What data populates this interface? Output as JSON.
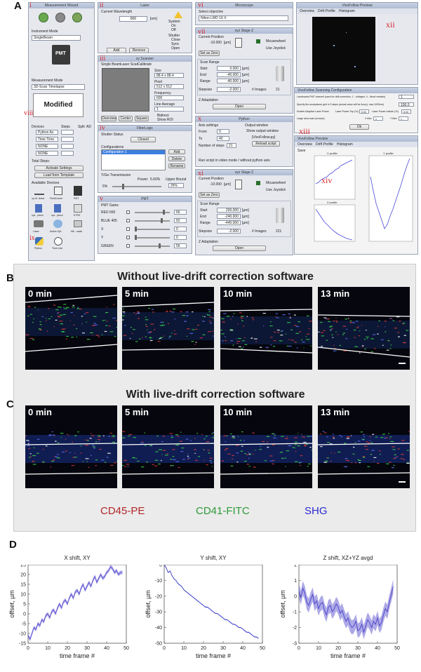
{
  "panels": {
    "a": "A",
    "b": "B",
    "c": "C",
    "d": "D"
  },
  "ui": {
    "roman": {
      "i": "i",
      "ii": "ii",
      "iii": "iii",
      "iv": "iv",
      "v": "v",
      "vi": "vi",
      "vii": "vii",
      "viii": "viii",
      "ix": "ix",
      "x": "x",
      "xi": "xi",
      "xii": "xii",
      "xiii": "xiii",
      "xiv": "xiv"
    },
    "measurement_wizard": {
      "title": "Measurement Wizard",
      "instrument_mode_label": "Instrument Mode",
      "instrument_mode_value": "SingleBeam",
      "measurement_mode_label": "Measurement Mode",
      "measurement_mode_value": "3D-Scan Timelapse",
      "modified": "Modified",
      "devices_label": "Devices",
      "steps_label": "Steps",
      "split_label": "Split",
      "ad_label": "AD",
      "devices": [
        "Python Ax",
        "Time Time",
        "NONE",
        "NONE"
      ],
      "total_steps": "Total Steps:",
      "activate_settings": "Activate Settings",
      "load_from_template": "Load from Template",
      "available_devices": "Available Devices",
      "device_icons": [
        "xy ctl. linear",
        "FieldCorner",
        "PMT",
        "xyz - piezo",
        "xyz - piezo",
        "ETRS",
        "Laser",
        "Active Opt.",
        "Mb - scale",
        "Python",
        "Time Line"
      ]
    },
    "laser": {
      "title": "Laser",
      "wavelength_label": "Current Wavelength",
      "wavelength_value": "800",
      "wavelength_unit": "[nm]",
      "system_label": "System",
      "system_on": "On",
      "system_off": "Off",
      "shutter_label": "Shutter",
      "shutter_close": "Close",
      "shutter_sync": "Sync",
      "shutter_open": "Open",
      "add": "Add",
      "remove": "Remove"
    },
    "scanner": {
      "title": "xy Scanner",
      "tabs": [
        "Single Beam",
        "Laser Scan",
        "Calibrate"
      ],
      "size_label": "Size",
      "size_value": "88.4 x 88.4",
      "pixel_label": "Pixel",
      "pixel_value": "512 x 512",
      "frequency_label": "Frequency",
      "frequency_value": "600",
      "line_average_label": "Line Average",
      "line_average_value": "1",
      "bidirect": "Bidirect",
      "show_roi": "Show ROI",
      "overview": "Overview",
      "center": "Center",
      "square": "Square"
    },
    "filterings": {
      "title": "FilterLogic",
      "shutter_status": "Shutter Status",
      "closed": "Closed",
      "configurations": "Configurations",
      "configuration_1": "Configuration 1",
      "add": "Add",
      "delete": "Delete",
      "rename": "Rename",
      "tv_transmission": "T/Ge-Transmission",
      "power_label": "Power:",
      "power_value": "5.60%",
      "upper_bound": "Upper Bound",
      "slider_min": "5%",
      "upper_bound_value": "25%"
    },
    "pmt": {
      "title": "PMT",
      "gains_label": "PMT Gains",
      "channels": [
        {
          "name": "RED 650",
          "value": "66"
        },
        {
          "name": "BLUE 405",
          "value": "62"
        },
        {
          "name": "X",
          "value": "0"
        },
        {
          "name": "Y",
          "value": "0"
        },
        {
          "name": "GREEN",
          "value": "56"
        }
      ]
    },
    "microscope": {
      "title": "Microscope",
      "select_objective": "Select objective",
      "objective_value": "Nikon LWD 16 X"
    },
    "z_stage_top": {
      "title": "xyz Stage Z",
      "current_position": "Current Position",
      "position_value": "-10.000",
      "unit": "[µm]",
      "mousewheel": "Mousewheel",
      "use_joystick": "Use Joystick",
      "set_as_zero": "Set as Zero",
      "scan_range": "Scan Range",
      "start_label": "Start",
      "start_value": "0.000",
      "end_label": "End",
      "end_value": "-40.000",
      "range_label": "Range",
      "range_value": "-40.000",
      "stepsize_label": "Stepsize",
      "stepsize_value": "-2.000",
      "images_label": "# Images",
      "images_value": "21",
      "z_adaptation": "Z Adaptation",
      "open": "Open"
    },
    "python": {
      "title": "Python",
      "axis_settings": "Axis settings",
      "from_label": "From",
      "from_value": "0",
      "to_label": "To",
      "to_value": "40",
      "number_of_steps": "Number of steps",
      "steps_value": "21",
      "output_window": "Output window",
      "show_output_window": "Show output window",
      "script_name": "[VivoFollow.py]",
      "reload_script": "Reload script",
      "run_video_mode": "Run script in video mode / without python axis"
    },
    "z_stage_bottom": {
      "title": "xyz Stage Z",
      "current_position": "Current Position",
      "position_value": "-10.000",
      "unit": "[µm]",
      "mousewheel": "Mousewheel",
      "use_joystick": "Use Joystick",
      "set_as_zero": "Set as Zero",
      "scan_range": "Scan Range",
      "start_label": "Start",
      "start_value": "200.000",
      "end_label": "End",
      "end_value": "-240.000",
      "range_label": "Range",
      "range_value": "-440.000",
      "stepsize_label": "Stepsize",
      "stepsize_value": "-2.000",
      "images_label": "# Images",
      "images_value": "221",
      "z_adaptation": "Z Adaptation",
      "open": "Open"
    },
    "overview": {
      "title": "VivoFollow Preview",
      "tabs": [
        "Overview",
        "Drift Profile",
        "Histogram"
      ]
    },
    "config_dialog": {
      "title": "VivoFollow Scanning Configuration",
      "landmark_label": "Landmarks PMT channel (used for drift correction, 1 - collagen, 4 - blood vessels)",
      "landmark_value": "1",
      "threshold_label": "Specify the acceptance grid in 3 steps (actual value will be fuzzy), max 1000nm)",
      "threshold_value": "100.0",
      "enable_adaptive": "Enable Adaptive Laser Power",
      "laser_power_top": "Laser Power Top (%)",
      "laser_power_top_value": "5.00",
      "laser_power_bottom": "Laser Power bottom (%)",
      "laser_power_bottom_value": "5.00",
      "large_area": "Large area scan (mosaic)",
      "x_tiles": "X tiles",
      "x_tiles_value": "1",
      "y_tiles": "Y tiles",
      "y_tiles_value": "1",
      "ok": "Ok"
    },
    "drift_window": {
      "title": "VivoFollow Preview",
      "tabs": [
        "Overview",
        "Drift Profile",
        "Histogram"
      ],
      "save_label": "Save",
      "plot_titles": [
        "X profile",
        "Y profile",
        "Z profile"
      ]
    }
  },
  "bc": {
    "title_b": "Without live-drift correction software",
    "title_c": "With live-drift correction software",
    "times": [
      "0 min",
      "5 min",
      "10 min",
      "13 min"
    ],
    "legend": [
      {
        "label": "CD45-PE",
        "color": "#b2262a"
      },
      {
        "label": "CD41-FITC",
        "color": "#2c9a3a"
      },
      {
        "label": "SHG",
        "color": "#2a2ad0"
      }
    ]
  },
  "chart_data": [
    {
      "type": "line",
      "title": "X shift, XY",
      "xlabel": "time frame #",
      "ylabel": "offset, µm",
      "xlim": [
        0,
        50
      ],
      "ylim": [
        -15,
        25
      ],
      "xticks": [
        0,
        10,
        20,
        30,
        40,
        50
      ],
      "yticks": [
        -15,
        -10,
        -5,
        0,
        5,
        10,
        15,
        20,
        25
      ],
      "color": "#5a4fd0",
      "band": 1.0,
      "series": [
        {
          "x": [
            0,
            1,
            2,
            3,
            4,
            5,
            6,
            7,
            8,
            9,
            10,
            11,
            12,
            13,
            14,
            15,
            16,
            17,
            18,
            19,
            20,
            21,
            22,
            23,
            24,
            25,
            26,
            27,
            28,
            29,
            30,
            31,
            32,
            33,
            34,
            35,
            36,
            37,
            38,
            39,
            40,
            41,
            42,
            43,
            44,
            45,
            46,
            47,
            48
          ],
          "values": [
            -11,
            -13,
            -10,
            -7,
            -8,
            -5,
            -6,
            -3,
            -4,
            -1,
            0,
            -2,
            1,
            2,
            0,
            3,
            5,
            3,
            6,
            7,
            5,
            8,
            10,
            8,
            11,
            12,
            10,
            13,
            15,
            12,
            14,
            16,
            14,
            17,
            19,
            16,
            18,
            20,
            18,
            19,
            21,
            22,
            24,
            23,
            21,
            22,
            20,
            21,
            21
          ]
        }
      ]
    },
    {
      "type": "line",
      "title": "Y shift, XY",
      "xlabel": "time frame #",
      "ylabel": "offset, µm",
      "xlim": [
        0,
        50
      ],
      "ylim": [
        -50,
        0
      ],
      "xticks": [
        0,
        10,
        20,
        30,
        40,
        50
      ],
      "yticks": [
        -50,
        -40,
        -30,
        -20,
        -10,
        0
      ],
      "color": "#3a3ac8",
      "band": 0.3,
      "series": [
        {
          "x": [
            0,
            1,
            2,
            3,
            4,
            5,
            6,
            7,
            8,
            9,
            10,
            11,
            12,
            13,
            14,
            15,
            16,
            17,
            18,
            19,
            20,
            21,
            22,
            23,
            24,
            25,
            26,
            27,
            28,
            29,
            30,
            31,
            32,
            33,
            34,
            35,
            36,
            37,
            38,
            39,
            40,
            41,
            42,
            43,
            44,
            45,
            46,
            47,
            48
          ],
          "values": [
            0,
            -2,
            -5,
            -4,
            -7,
            -9,
            -10,
            -12,
            -13,
            -14,
            -16,
            -17,
            -18,
            -19,
            -20,
            -21,
            -22,
            -23,
            -24,
            -25,
            -26,
            -27,
            -27,
            -28,
            -29,
            -30,
            -31,
            -31,
            -32,
            -33,
            -34,
            -35,
            -35,
            -36,
            -37,
            -38,
            -38,
            -39,
            -40,
            -40,
            -41,
            -42,
            -43,
            -43,
            -44,
            -45,
            -46,
            -46,
            -47
          ]
        }
      ]
    },
    {
      "type": "line",
      "title": "Z shift, XZ+YZ avgd",
      "xlabel": "time frame #",
      "ylabel": "offset, µm",
      "xlim": [
        0,
        50
      ],
      "ylim": [
        -3,
        2
      ],
      "xticks": [
        0,
        10,
        20,
        30,
        40,
        50
      ],
      "yticks": [
        -3,
        -2,
        -1,
        0,
        1,
        2
      ],
      "color": "#4a40c8",
      "band": 0.45,
      "series": [
        {
          "x": [
            0,
            1,
            2,
            3,
            4,
            5,
            6,
            7,
            8,
            9,
            10,
            11,
            12,
            13,
            14,
            15,
            16,
            17,
            18,
            19,
            20,
            21,
            22,
            23,
            24,
            25,
            26,
            27,
            28,
            29,
            30,
            31,
            32,
            33,
            34,
            35,
            36,
            37,
            38,
            39,
            40,
            41,
            42,
            43,
            44,
            45,
            46,
            47,
            48
          ],
          "values": [
            0.3,
            -0.1,
            0.5,
            0.2,
            -0.4,
            -0.6,
            -0.2,
            0.1,
            -0.5,
            -0.3,
            -0.8,
            -0.5,
            -0.4,
            -0.9,
            -1.2,
            -0.7,
            -0.6,
            -1.0,
            -0.8,
            -0.5,
            -0.7,
            -1.1,
            -0.9,
            -1.3,
            -1.6,
            -1.4,
            -1.8,
            -2.0,
            -1.9,
            -1.6,
            -2.2,
            -2.1,
            -1.8,
            -2.3,
            -1.9,
            -1.5,
            -1.7,
            -2.0,
            -1.6,
            -1.8,
            -1.4,
            -1.9,
            -1.7,
            -1.2,
            -0.8,
            -1.0,
            -0.4,
            0.1,
            0.6
          ]
        }
      ]
    }
  ]
}
